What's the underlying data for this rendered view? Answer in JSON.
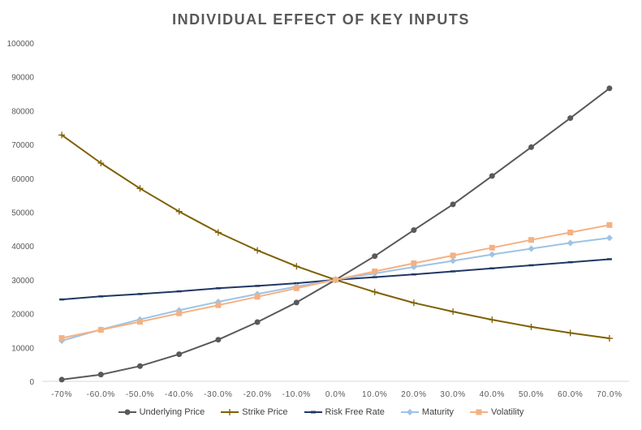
{
  "chart_data": {
    "type": "line",
    "title": "INDIVIDUAL EFFECT OF KEY INPUTS",
    "xlabel": "",
    "ylabel": "",
    "categories": [
      "-70%",
      "-60.0%",
      "-50.0%",
      "-40.0%",
      "-30.0%",
      "-20.0%",
      "-10.0%",
      "0.0%",
      "10.0%",
      "20.0%",
      "30.0%",
      "40.0%",
      "50.0%",
      "60.0%",
      "70.0%"
    ],
    "ylim": [
      0,
      100000
    ],
    "y_ticks": [
      "0",
      "10000",
      "20000",
      "30000",
      "40000",
      "50000",
      "60000",
      "70000",
      "80000",
      "90000",
      "100000"
    ],
    "grid": false,
    "legend_position": "bottom",
    "series": [
      {
        "name": "Underlying Price",
        "color": "#595959",
        "marker": "circle",
        "values": [
          500,
          2000,
          4500,
          8000,
          12300,
          17500,
          23300,
          30000,
          37000,
          44700,
          52300,
          60700,
          69200,
          77800,
          86600
        ]
      },
      {
        "name": "Strike Price",
        "color": "#7f6000",
        "marker": "plus",
        "values": [
          72800,
          64500,
          57000,
          50200,
          44000,
          38700,
          34000,
          30000,
          26400,
          23200,
          20600,
          18200,
          16100,
          14300,
          12700
        ]
      },
      {
        "name": "Risk Free Rate",
        "color": "#203864",
        "marker": "dash",
        "values": [
          24200,
          25100,
          25800,
          26600,
          27500,
          28200,
          29000,
          30000,
          30800,
          31600,
          32500,
          33400,
          34300,
          35200,
          36100
        ]
      },
      {
        "name": "Maturity",
        "color": "#9dc3e6",
        "marker": "diamond",
        "values": [
          12000,
          15300,
          18300,
          21000,
          23500,
          25800,
          28000,
          30000,
          31900,
          33800,
          35600,
          37500,
          39200,
          40900,
          42400
        ]
      },
      {
        "name": "Volatility",
        "color": "#f4b183",
        "marker": "square",
        "values": [
          12800,
          15200,
          17600,
          20100,
          22500,
          25000,
          27500,
          30000,
          32500,
          34900,
          37200,
          39500,
          41800,
          44000,
          46200
        ]
      }
    ]
  }
}
